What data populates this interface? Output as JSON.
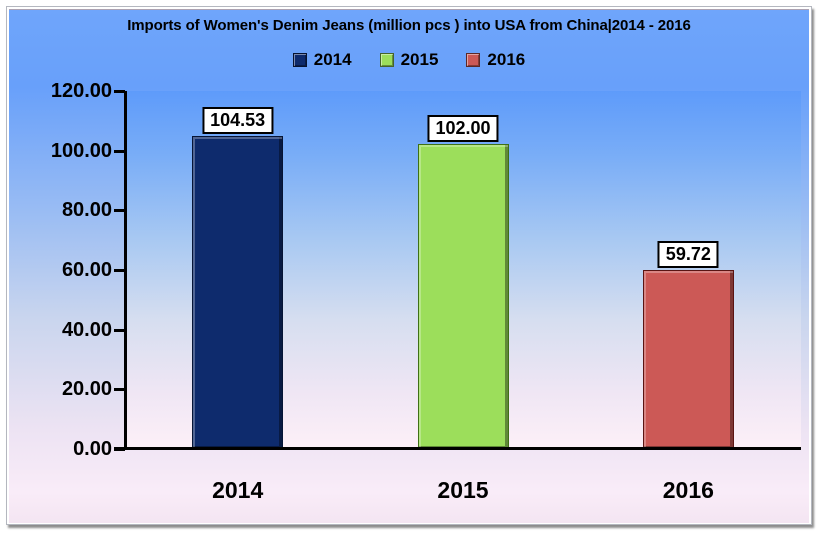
{
  "chart_data": {
    "type": "bar",
    "title": "Imports of Women's Denim Jeans (million pcs ) into USA from China|2014 - 2016",
    "categories": [
      "2014",
      "2015",
      "2016"
    ],
    "values": [
      104.53,
      102.0,
      59.72
    ],
    "value_labels": [
      "104.53",
      "102.00",
      "59.72"
    ],
    "series_colors": [
      "#0E2B6D",
      "#9CDE5B",
      "#CC5956"
    ],
    "edge_colors": [
      "#061536",
      "#3F7015",
      "#5A1413"
    ],
    "y_ticks": [
      "120.00",
      "100.00",
      "80.00",
      "60.00",
      "40.00",
      "20.00",
      "0.00"
    ],
    "ylim": [
      0,
      120
    ],
    "xlabel": "",
    "ylabel": "",
    "grid": false,
    "legend": {
      "position": "top",
      "labels": [
        "2014",
        "2015",
        "2016"
      ]
    },
    "colors": {
      "background_top": "#6FA5FB",
      "background_bottom": "#F4E5F2",
      "plot_top": "#5E9BFA",
      "plot_bottom": "#FDF0F8",
      "axis": "#000000",
      "text": "#000000",
      "label_box_bg": "#FFFFFF",
      "label_box_border": "#000000"
    }
  }
}
